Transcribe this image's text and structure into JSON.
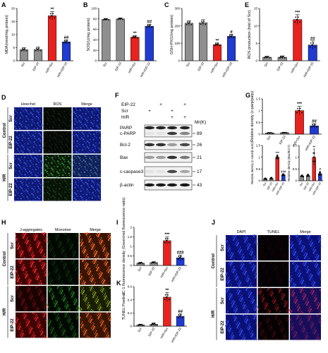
{
  "panel_letters": {
    "A": "A",
    "B": "B",
    "C": "C",
    "D": "D",
    "E": "E",
    "F": "F",
    "G": "G",
    "H": "H",
    "I": "I",
    "J": "J",
    "K": "K"
  },
  "colors": {
    "gray": "#8f8f8f",
    "red": "#e8231f",
    "blue": "#1f3bd1",
    "dot": "#000000"
  },
  "chart_data": [
    {
      "id": "A",
      "type": "bar",
      "categories": [
        "Scr",
        "EIP-22",
        "H/R+Scr",
        "H/R+EIP-22"
      ],
      "values": [
        4.2,
        4.3,
        17.2,
        7.2
      ],
      "errors": [
        0.8,
        0.9,
        1.6,
        0.8
      ],
      "ylabel": "MDA(nmol/mg protein)",
      "ylim": [
        0,
        20
      ],
      "yticks": [
        0,
        5,
        10,
        15,
        20
      ],
      "sig": [
        "",
        "",
        "**",
        "##"
      ]
    },
    {
      "id": "B",
      "type": "bar",
      "categories": [
        "Scr",
        "EIP-22",
        "H/R+Scr",
        "H/R+EIP-22"
      ],
      "values": [
        79,
        80,
        45,
        66
      ],
      "errors": [
        2,
        2,
        3,
        4
      ],
      "ylabel": "SOD(U/mg protein)",
      "ylim": [
        0,
        100
      ],
      "yticks": [
        0,
        20,
        40,
        60,
        80,
        100
      ],
      "sig": [
        "",
        "",
        "**",
        "##"
      ]
    },
    {
      "id": "C",
      "type": "bar",
      "categories": [
        "Scr",
        "EIP-22",
        "H/R+Scr",
        "H/R+EIP-22"
      ],
      "values": [
        215,
        218,
        92,
        140
      ],
      "errors": [
        15,
        18,
        10,
        13
      ],
      "ylabel": "GSH-PX(U/mg protein)",
      "ylim": [
        0,
        300
      ],
      "yticks": [
        0,
        100,
        200,
        300
      ],
      "sig": [
        "",
        "",
        "**",
        "#"
      ]
    },
    {
      "id": "E",
      "type": "bar",
      "categories": [
        "Scr",
        "EIP-22",
        "H/R+Scr",
        "H/R+EIP-22"
      ],
      "values": [
        1.0,
        1.0,
        11.8,
        4.5
      ],
      "errors": [
        0.3,
        0.4,
        1.4,
        1.2
      ],
      "ylabel": "ROS production (fold of Scr)",
      "ylim": [
        0,
        15
      ],
      "yticks": [
        0,
        5,
        10,
        15
      ],
      "sig": [
        "",
        "",
        "***",
        "##"
      ]
    },
    {
      "id": "G1",
      "type": "bar",
      "categories": [
        "Scr",
        "EIP-22",
        "H/R+Scr",
        "H/R+EIP-22"
      ],
      "values": [
        0.05,
        0.06,
        1.0,
        0.35
      ],
      "errors": [
        0.02,
        0.02,
        0.18,
        0.1
      ],
      "ylabel": "Relative density (c-parp/parp)",
      "ylim": [
        0,
        1.5
      ],
      "yticks": [
        0,
        0.5,
        1.0,
        1.5
      ],
      "sig": [
        "",
        "",
        "***",
        "##"
      ]
    },
    {
      "id": "G2",
      "type": "bar",
      "categories": [
        "Scr",
        "EIP-22",
        "H/R+Scr",
        "H/R+EIP-22"
      ],
      "values": [
        0.08,
        0.1,
        1.0,
        0.25
      ],
      "errors": [
        0.04,
        0.05,
        0.1,
        0.05
      ],
      "ylabel": "Relative density (c-cas3/β-actin)",
      "ylim": [
        0,
        1.5
      ],
      "yticks": [
        0,
        0.5,
        1.0,
        1.5
      ],
      "sig": [
        "",
        "",
        "***",
        "###"
      ]
    },
    {
      "id": "G3",
      "type": "bar",
      "categories": [
        "Scr",
        "EIP-22",
        "H/R+Scr",
        "H/R+EIP-22"
      ],
      "values": [
        0.2,
        0.22,
        1.0,
        0.3
      ],
      "errors": [
        0.05,
        0.06,
        0.35,
        0.1
      ],
      "ylabel": "Relative density (Bax/Bcl-2)",
      "ylim": [
        0,
        1.5
      ],
      "yticks": [
        0,
        0.5,
        1.0,
        1.5
      ],
      "sig": [
        "",
        "",
        "**",
        "#"
      ]
    },
    {
      "id": "I",
      "type": "bar",
      "categories": [
        "Scr",
        "EIP-22",
        "H/R+Scr",
        "H/R+EIP-22"
      ],
      "values": [
        0.12,
        0.15,
        1.3,
        0.4
      ],
      "errors": [
        0.05,
        0.05,
        0.2,
        0.15
      ],
      "ylabel": "JC-1 fluorescence density (Green/red fluorescence ratio)",
      "ylim": [
        0,
        2.0
      ],
      "yticks": [
        0,
        0.5,
        1.0,
        1.5,
        2.0
      ],
      "sig": [
        "",
        "",
        "***",
        "###"
      ]
    },
    {
      "id": "K",
      "type": "bar",
      "categories": [
        "Scr",
        "EIP-22",
        "H/R+Scr",
        "H/R+EIP-22"
      ],
      "values": [
        0.02,
        0.03,
        0.44,
        0.15
      ],
      "errors": [
        0.01,
        0.02,
        0.07,
        0.04
      ],
      "ylabel": "TUNEL Positive",
      "ylim": [
        0,
        0.6
      ],
      "yticks": [
        0,
        0.2,
        0.4,
        0.6
      ],
      "sig": [
        "",
        "",
        "**",
        "##"
      ]
    }
  ],
  "panel_D": {
    "columns": [
      "Hoechst",
      "ROS",
      "Merge"
    ],
    "groups": [
      "Control",
      "H/R"
    ],
    "rows": [
      "Scr",
      "EIP-22",
      "Scr",
      "EIP-22"
    ]
  },
  "panel_H": {
    "columns": [
      "J-aggregates",
      "Monomer",
      "Merge"
    ],
    "groups": [
      "Control",
      "H/R"
    ],
    "rows": [
      "Scr",
      "EIP-22",
      "Scr",
      "EIP-22"
    ]
  },
  "panel_J": {
    "columns": [
      "DAPI",
      "TUNEL",
      "Merge"
    ],
    "groups": [
      "Control",
      "H/R"
    ],
    "rows": [
      "Scr",
      "EIP-22",
      "Scr",
      "EIP-22"
    ]
  },
  "panel_F": {
    "conditions": [
      {
        "name": "EIP-22",
        "marks": [
          "",
          "+",
          "",
          "+"
        ]
      },
      {
        "name": "Scr",
        "marks": [
          "+",
          "",
          "+",
          ""
        ]
      },
      {
        "name": "H/R",
        "marks": [
          "",
          "",
          "+",
          "+"
        ]
      }
    ],
    "mr_label": "Mr(K)",
    "bands": [
      {
        "name": "PARP",
        "mw": ""
      },
      {
        "name": "c-PARP",
        "mw": "89"
      },
      {
        "name": "Bcl-2",
        "mw": "26"
      },
      {
        "name": "Bax",
        "mw": "21"
      },
      {
        "name": "c-caspase3",
        "mw": "17"
      },
      {
        "name": "β-actin",
        "mw": "43"
      }
    ]
  }
}
